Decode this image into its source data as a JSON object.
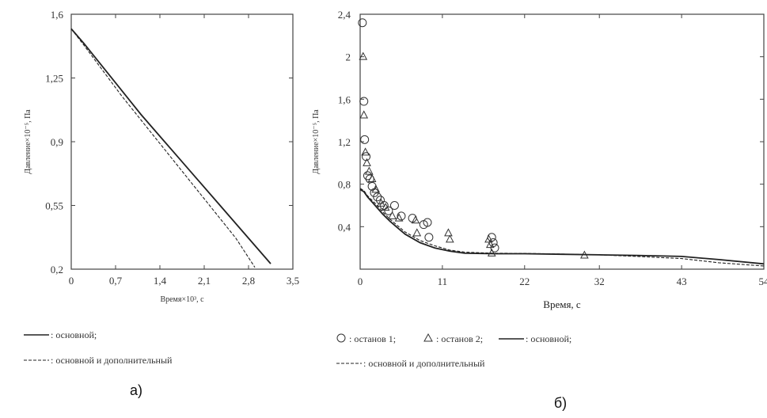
{
  "chart_data": [
    {
      "type": "line",
      "panel_label": "а)",
      "xlabel": "Время×10³, с",
      "ylabel": "Давление×10⁻⁵, Па",
      "xlim": [
        0,
        3.5
      ],
      "ylim": [
        0.2,
        1.6
      ],
      "xticks": [
        "0",
        "0,7",
        "1,4",
        "2,1",
        "2,8",
        "3,5"
      ],
      "xtick_values": [
        0,
        0.7,
        1.4,
        2.1,
        2.8,
        3.5
      ],
      "yticks": [
        "0,2",
        "0,55",
        "0,9",
        "1,25",
        "1,6"
      ],
      "ytick_values": [
        0.2,
        0.55,
        0.9,
        1.25,
        1.6
      ],
      "grid": false,
      "series": [
        {
          "name": "основной",
          "style": "solid",
          "x": [
            0,
            0.2,
            0.5,
            0.8,
            1.1,
            1.4,
            1.7,
            2.0,
            2.3,
            2.6,
            2.9,
            3.15
          ],
          "y": [
            1.52,
            1.44,
            1.31,
            1.18,
            1.05,
            0.93,
            0.81,
            0.69,
            0.57,
            0.45,
            0.33,
            0.23
          ]
        },
        {
          "name": "основной и дополнительный",
          "style": "dashed",
          "x": [
            0,
            0.2,
            0.5,
            0.8,
            1.1,
            1.4,
            1.7,
            2.0,
            2.3,
            2.6,
            2.9
          ],
          "y": [
            1.52,
            1.43,
            1.29,
            1.15,
            1.02,
            0.89,
            0.76,
            0.63,
            0.5,
            0.37,
            0.21
          ]
        }
      ],
      "legend": [
        {
          "marker": "solid",
          "label": ": основной;"
        },
        {
          "marker": "dashed",
          "label": ": основной и дополнительный"
        }
      ]
    },
    {
      "type": "scatter",
      "panel_label": "б)",
      "xlabel": "Время, с",
      "ylabel": "Давление×10⁻⁵, Па",
      "xlim": [
        0,
        54
      ],
      "ylim": [
        0,
        2.4
      ],
      "xticks": [
        "0",
        "11",
        "22",
        "32",
        "43",
        "54"
      ],
      "xtick_values": [
        0,
        11,
        22,
        32,
        43,
        54
      ],
      "yticks": [
        "0,4",
        "0,8",
        "1,2",
        "1,6",
        "2",
        "2,4"
      ],
      "ytick_values": [
        0.4,
        0.8,
        1.2,
        1.6,
        2.0,
        2.4
      ],
      "grid": false,
      "series": [
        {
          "name": "останов 1",
          "marker": "circle",
          "x": [
            0.3,
            0.5,
            0.6,
            0.8,
            1.0,
            1.3,
            1.6,
            1.9,
            2.3,
            2.7,
            3.2,
            3.8,
            4.6,
            5.5,
            7.0,
            8.5,
            9.0,
            9.2,
            17.6,
            17.8,
            18.0
          ],
          "y": [
            2.32,
            1.58,
            1.22,
            1.06,
            0.88,
            0.85,
            0.78,
            0.72,
            0.68,
            0.65,
            0.6,
            0.55,
            0.6,
            0.5,
            0.48,
            0.42,
            0.44,
            0.3,
            0.3,
            0.25,
            0.2
          ]
        },
        {
          "name": "останов 2",
          "marker": "triangle",
          "x": [
            0.4,
            0.5,
            0.7,
            0.9,
            1.2,
            1.6,
            2.1,
            2.8,
            3.4,
            4.3,
            5.2,
            7.4,
            7.6,
            11.8,
            12.0,
            17.2,
            17.4,
            17.6,
            30.0
          ],
          "y": [
            2.0,
            1.45,
            1.1,
            1.0,
            0.92,
            0.85,
            0.75,
            0.62,
            0.58,
            0.5,
            0.48,
            0.46,
            0.34,
            0.34,
            0.28,
            0.28,
            0.23,
            0.15,
            0.13
          ]
        },
        {
          "name": "основной",
          "style": "solid",
          "x": [
            0,
            0.5,
            1,
            2,
            3,
            4,
            5,
            6,
            8,
            10,
            12,
            14,
            18,
            22,
            27,
            32,
            37,
            43,
            48,
            54
          ],
          "y": [
            0.75,
            0.73,
            0.68,
            0.6,
            0.52,
            0.45,
            0.39,
            0.33,
            0.25,
            0.2,
            0.17,
            0.15,
            0.145,
            0.145,
            0.14,
            0.135,
            0.13,
            0.12,
            0.09,
            0.05
          ]
        },
        {
          "name": "основной и дополнительный",
          "style": "dashed",
          "x": [
            0,
            0.5,
            1,
            2,
            3,
            4,
            5,
            6,
            8,
            10,
            12,
            14,
            18,
            22,
            27,
            32,
            37,
            43,
            48,
            54
          ],
          "y": [
            0.76,
            0.74,
            0.69,
            0.62,
            0.54,
            0.47,
            0.41,
            0.35,
            0.27,
            0.22,
            0.18,
            0.16,
            0.15,
            0.148,
            0.142,
            0.135,
            0.12,
            0.1,
            0.06,
            0.03
          ]
        }
      ],
      "legend": [
        {
          "marker": "circle",
          "label": ": останов 1;"
        },
        {
          "marker": "triangle",
          "label": ": останов 2;"
        },
        {
          "marker": "solid",
          "label": ": основной;"
        },
        {
          "marker": "dashed",
          "label": ": основной и дополнительный"
        }
      ]
    }
  ]
}
